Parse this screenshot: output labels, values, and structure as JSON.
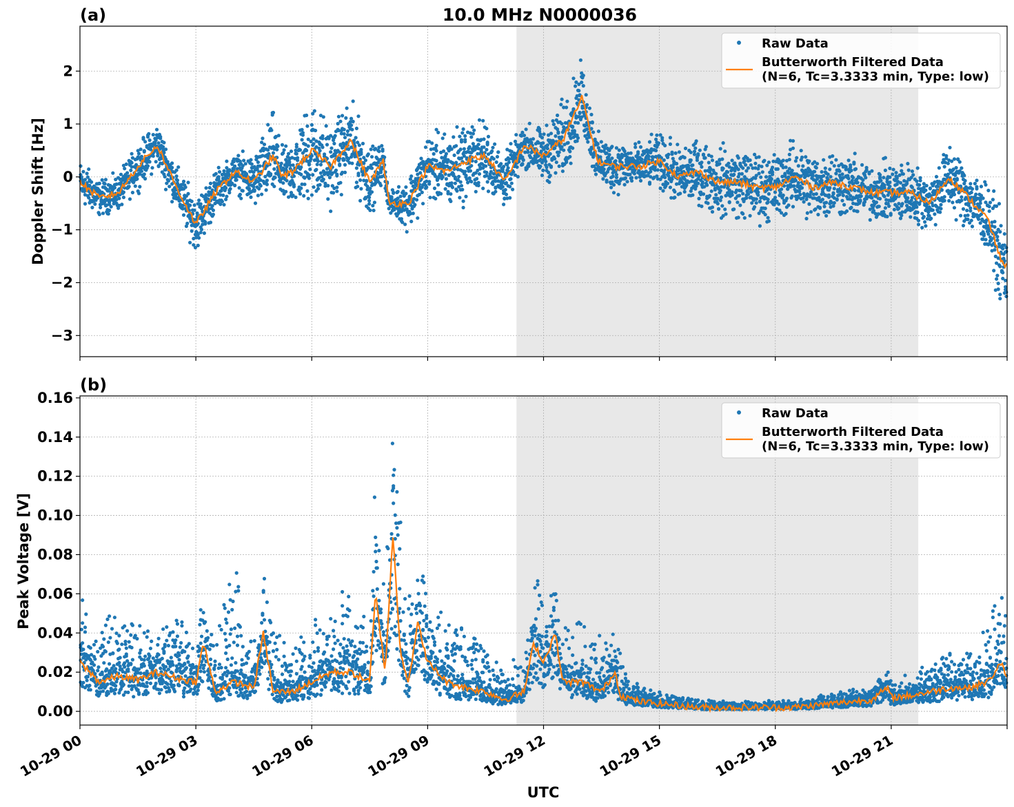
{
  "figure": {
    "title": "10.0 MHz N0000036",
    "xlabel": "UTC",
    "colors": {
      "raw": "#1f77b4",
      "filtered": "#ff7f0e",
      "shade": "#e8e8e8",
      "grid": "#b0b0b0"
    },
    "x_tick_labels": [
      "10-29 00",
      "10-29 03",
      "10-29 06",
      "10-29 09",
      "10-29 12",
      "10-29 15",
      "10-29 18",
      "10-29 21"
    ],
    "x_tick_hours": [
      0,
      3,
      6,
      9,
      12,
      15,
      18,
      21
    ],
    "xlim_hours": [
      0,
      24
    ],
    "night_shading_hours": [
      11.3,
      21.7
    ]
  },
  "chart_data": [
    {
      "panel_label": "(a)",
      "type": "scatter",
      "ylabel": "Doppler Shift [Hz]",
      "ylim": [
        -3.4,
        2.85
      ],
      "y_ticks": [
        2,
        1,
        0,
        -1,
        -2,
        -3
      ],
      "y_tick_labels": [
        "2",
        "1",
        "0",
        "−1",
        "−2",
        "−3"
      ],
      "grid": true,
      "legend": {
        "position": "top-right",
        "raw_label": "Raw Data",
        "filtered_label_line1": "Butterworth Filtered Data",
        "filtered_label_line2": "(N=6, Tc=3.3333 min, Type: low)"
      },
      "series": [
        {
          "name": "Butterworth Filtered Data",
          "style": "line",
          "x_hours": [
            0.0,
            0.5,
            1.0,
            1.5,
            2.0,
            2.5,
            3.0,
            3.5,
            4.0,
            4.5,
            5.0,
            5.25,
            5.5,
            6.0,
            6.5,
            7.0,
            7.5,
            7.85,
            8.0,
            8.5,
            9.0,
            9.5,
            10.0,
            10.5,
            11.0,
            11.5,
            12.0,
            12.5,
            13.0,
            13.4,
            13.8,
            14.5,
            15.0,
            15.5,
            16.0,
            16.5,
            17.0,
            17.5,
            18.0,
            18.5,
            19.0,
            19.5,
            20.0,
            20.5,
            21.0,
            21.5,
            22.0,
            22.5,
            23.0,
            23.5,
            23.9,
            24.0
          ],
          "y": [
            -0.1,
            -0.4,
            -0.3,
            0.2,
            0.6,
            -0.2,
            -0.9,
            -0.3,
            0.1,
            -0.1,
            0.4,
            0.0,
            0.1,
            0.5,
            0.2,
            0.7,
            -0.1,
            0.3,
            -0.5,
            -0.5,
            0.2,
            0.1,
            0.3,
            0.4,
            -0.1,
            0.6,
            0.4,
            0.7,
            1.5,
            0.3,
            0.2,
            0.2,
            0.3,
            0.0,
            0.1,
            -0.1,
            -0.1,
            -0.2,
            -0.2,
            0.0,
            -0.2,
            -0.1,
            -0.2,
            -0.3,
            -0.3,
            -0.3,
            -0.5,
            0.0,
            -0.4,
            -0.8,
            -1.7,
            -1.6
          ]
        },
        {
          "name": "Raw Data",
          "style": "points",
          "x_hours": [
            0.0,
            0.5,
            1.0,
            1.5,
            2.0,
            2.5,
            3.0,
            3.5,
            4.0,
            4.5,
            5.0,
            5.25,
            5.5,
            6.0,
            6.5,
            7.0,
            7.5,
            7.85,
            8.0,
            8.5,
            9.0,
            9.5,
            10.0,
            10.5,
            11.0,
            11.5,
            12.0,
            12.5,
            13.0,
            13.4,
            13.8,
            14.5,
            15.0,
            15.5,
            16.0,
            16.5,
            17.0,
            17.5,
            18.0,
            18.5,
            19.0,
            19.5,
            20.0,
            20.5,
            21.0,
            21.5,
            22.0,
            22.5,
            23.0,
            23.5,
            23.9,
            24.0
          ],
          "y_center": [
            -0.1,
            -0.4,
            -0.3,
            0.2,
            0.6,
            -0.2,
            -0.9,
            -0.3,
            0.1,
            -0.1,
            0.4,
            0.0,
            0.1,
            0.5,
            0.2,
            0.7,
            -0.1,
            0.3,
            -0.5,
            -0.5,
            0.2,
            0.1,
            0.3,
            0.4,
            -0.1,
            0.6,
            0.4,
            0.7,
            1.5,
            0.3,
            0.2,
            0.2,
            0.3,
            0.0,
            0.1,
            -0.1,
            -0.1,
            -0.2,
            -0.2,
            0.0,
            -0.2,
            -0.1,
            -0.2,
            -0.3,
            -0.3,
            -0.3,
            -0.5,
            0.0,
            -0.4,
            -0.8,
            -1.7,
            -1.6
          ],
          "y_spread": [
            0.5,
            0.4,
            0.4,
            0.5,
            0.5,
            0.5,
            0.6,
            0.5,
            0.4,
            0.6,
            1.0,
            0.6,
            0.8,
            1.2,
            0.9,
            0.9,
            0.8,
            0.4,
            0.2,
            0.6,
            0.7,
            0.9,
            0.9,
            0.8,
            0.6,
            0.5,
            0.6,
            0.9,
            0.8,
            0.6,
            0.6,
            0.5,
            0.6,
            0.7,
            0.7,
            0.8,
            0.8,
            0.8,
            0.8,
            0.8,
            0.8,
            0.8,
            0.7,
            0.6,
            0.7,
            0.7,
            0.6,
            0.8,
            0.7,
            0.8,
            1.0,
            1.2
          ]
        }
      ]
    },
    {
      "panel_label": "(b)",
      "type": "scatter",
      "ylabel": "Peak Voltage [V]",
      "ylim": [
        -0.007,
        0.161
      ],
      "y_ticks": [
        0.0,
        0.02,
        0.04,
        0.06,
        0.08,
        0.1,
        0.12,
        0.14,
        0.16
      ],
      "y_tick_labels": [
        "0.00",
        "0.02",
        "0.04",
        "0.06",
        "0.08",
        "0.10",
        "0.12",
        "0.14",
        "0.16"
      ],
      "grid": true,
      "legend": {
        "position": "top-right",
        "raw_label": "Raw Data",
        "filtered_label_line1": "Butterworth Filtered Data",
        "filtered_label_line2": "(N=6, Tc=3.3333 min, Type: low)"
      },
      "series": [
        {
          "name": "Butterworth Filtered Data",
          "style": "line",
          "x_hours": [
            0.0,
            0.5,
            1.0,
            1.5,
            2.0,
            2.5,
            3.0,
            3.2,
            3.5,
            4.0,
            4.5,
            4.75,
            5.0,
            5.5,
            6.0,
            6.5,
            7.0,
            7.5,
            7.65,
            7.9,
            8.1,
            8.3,
            8.5,
            8.75,
            9.0,
            9.5,
            10.0,
            10.5,
            11.0,
            11.5,
            11.75,
            12.0,
            12.3,
            12.5,
            13.0,
            13.5,
            13.85,
            14.0,
            14.5,
            15.0,
            15.5,
            16.0,
            16.5,
            17.0,
            17.5,
            18.0,
            18.5,
            19.0,
            19.5,
            20.0,
            20.5,
            20.9,
            21.0,
            21.5,
            22.0,
            22.5,
            23.0,
            23.5,
            23.85,
            24.0
          ],
          "y": [
            0.025,
            0.015,
            0.018,
            0.016,
            0.02,
            0.017,
            0.015,
            0.035,
            0.01,
            0.015,
            0.012,
            0.04,
            0.01,
            0.01,
            0.015,
            0.02,
            0.02,
            0.015,
            0.06,
            0.02,
            0.09,
            0.03,
            0.015,
            0.045,
            0.025,
            0.015,
            0.012,
            0.01,
            0.006,
            0.01,
            0.035,
            0.025,
            0.04,
            0.015,
            0.015,
            0.01,
            0.02,
            0.008,
            0.005,
            0.004,
            0.003,
            0.002,
            0.002,
            0.002,
            0.002,
            0.002,
            0.002,
            0.003,
            0.004,
            0.005,
            0.006,
            0.012,
            0.007,
            0.008,
            0.01,
            0.012,
            0.012,
            0.015,
            0.025,
            0.015
          ]
        },
        {
          "name": "Raw Data",
          "style": "points",
          "x_hours": [
            0.0,
            0.5,
            1.0,
            1.5,
            2.0,
            2.5,
            3.0,
            3.2,
            3.5,
            4.0,
            4.5,
            4.75,
            5.0,
            5.5,
            6.0,
            6.5,
            7.0,
            7.5,
            7.65,
            7.9,
            8.1,
            8.3,
            8.5,
            8.75,
            9.0,
            9.5,
            10.0,
            10.5,
            11.0,
            11.5,
            11.75,
            12.0,
            12.3,
            12.5,
            13.0,
            13.5,
            13.85,
            14.0,
            14.5,
            15.0,
            15.5,
            16.0,
            16.5,
            17.0,
            17.5,
            18.0,
            18.5,
            19.0,
            19.5,
            20.0,
            20.5,
            20.9,
            21.0,
            21.5,
            22.0,
            22.5,
            23.0,
            23.5,
            23.85,
            24.0
          ],
          "y_center": [
            0.025,
            0.015,
            0.018,
            0.016,
            0.02,
            0.017,
            0.015,
            0.035,
            0.01,
            0.015,
            0.012,
            0.04,
            0.01,
            0.01,
            0.015,
            0.02,
            0.02,
            0.015,
            0.06,
            0.02,
            0.09,
            0.03,
            0.015,
            0.045,
            0.025,
            0.015,
            0.012,
            0.01,
            0.006,
            0.01,
            0.035,
            0.025,
            0.04,
            0.015,
            0.015,
            0.01,
            0.02,
            0.008,
            0.005,
            0.004,
            0.003,
            0.002,
            0.002,
            0.002,
            0.002,
            0.002,
            0.002,
            0.003,
            0.004,
            0.005,
            0.006,
            0.012,
            0.007,
            0.008,
            0.01,
            0.012,
            0.012,
            0.015,
            0.025,
            0.015
          ],
          "y_peak": [
            0.055,
            0.045,
            0.05,
            0.045,
            0.045,
            0.045,
            0.04,
            0.057,
            0.035,
            0.081,
            0.04,
            0.067,
            0.045,
            0.03,
            0.045,
            0.05,
            0.063,
            0.04,
            0.116,
            0.06,
            0.153,
            0.1,
            0.06,
            0.086,
            0.06,
            0.045,
            0.045,
            0.03,
            0.02,
            0.03,
            0.073,
            0.05,
            0.075,
            0.04,
            0.045,
            0.035,
            0.05,
            0.025,
            0.012,
            0.01,
            0.008,
            0.006,
            0.005,
            0.005,
            0.005,
            0.005,
            0.006,
            0.007,
            0.009,
            0.012,
            0.014,
            0.022,
            0.015,
            0.018,
            0.025,
            0.03,
            0.03,
            0.045,
            0.057,
            0.045
          ]
        }
      ]
    }
  ]
}
